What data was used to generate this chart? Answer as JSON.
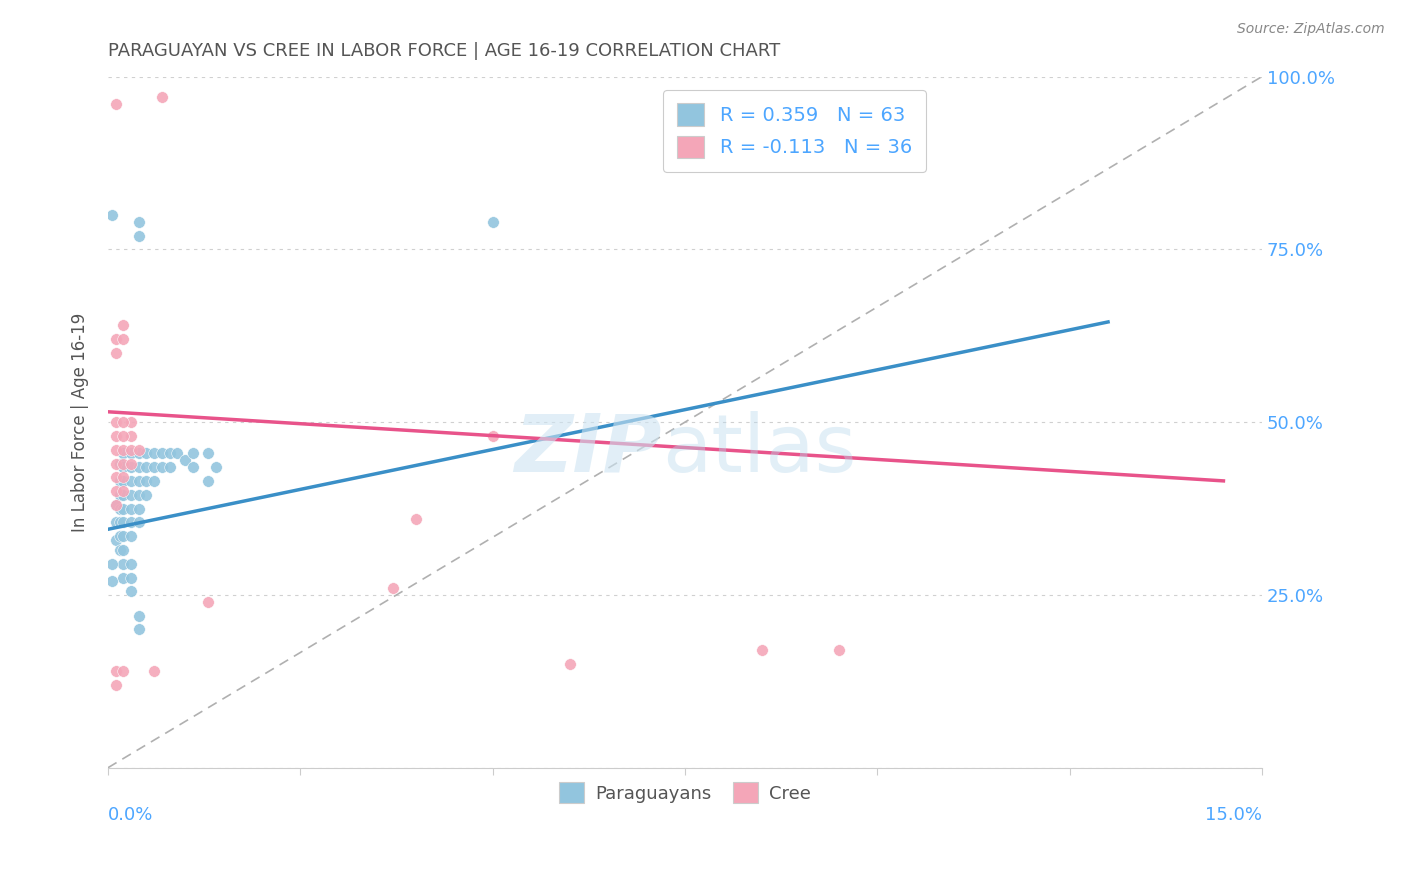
{
  "title": "PARAGUAYAN VS CREE IN LABOR FORCE | AGE 16-19 CORRELATION CHART",
  "source": "Source: ZipAtlas.com",
  "ylabel": "In Labor Force | Age 16-19",
  "xmin": 0.0,
  "xmax": 0.15,
  "ymin": 0.0,
  "ymax": 1.0,
  "yticks": [
    0.0,
    0.25,
    0.5,
    0.75,
    1.0
  ],
  "ytick_labels": [
    "",
    "25.0%",
    "50.0%",
    "75.0%",
    "100.0%"
  ],
  "blue_color": "#92c5de",
  "pink_color": "#f4a6b8",
  "line_blue": "#3a8fc7",
  "line_pink": "#e8538a",
  "axis_color": "#4da6ff",
  "title_color": "#555555",
  "blue_scatter": [
    [
      0.001,
      0.38
    ],
    [
      0.001,
      0.355
    ],
    [
      0.001,
      0.33
    ],
    [
      0.0015,
      0.44
    ],
    [
      0.0015,
      0.415
    ],
    [
      0.0015,
      0.395
    ],
    [
      0.0015,
      0.375
    ],
    [
      0.0015,
      0.355
    ],
    [
      0.0015,
      0.335
    ],
    [
      0.0015,
      0.315
    ],
    [
      0.002,
      0.455
    ],
    [
      0.002,
      0.435
    ],
    [
      0.002,
      0.415
    ],
    [
      0.002,
      0.395
    ],
    [
      0.002,
      0.375
    ],
    [
      0.002,
      0.355
    ],
    [
      0.002,
      0.335
    ],
    [
      0.002,
      0.315
    ],
    [
      0.002,
      0.295
    ],
    [
      0.002,
      0.275
    ],
    [
      0.003,
      0.455
    ],
    [
      0.003,
      0.435
    ],
    [
      0.003,
      0.415
    ],
    [
      0.003,
      0.395
    ],
    [
      0.003,
      0.375
    ],
    [
      0.003,
      0.355
    ],
    [
      0.003,
      0.335
    ],
    [
      0.004,
      0.455
    ],
    [
      0.004,
      0.435
    ],
    [
      0.004,
      0.415
    ],
    [
      0.004,
      0.395
    ],
    [
      0.004,
      0.375
    ],
    [
      0.004,
      0.355
    ],
    [
      0.005,
      0.455
    ],
    [
      0.005,
      0.435
    ],
    [
      0.005,
      0.415
    ],
    [
      0.005,
      0.395
    ],
    [
      0.006,
      0.455
    ],
    [
      0.006,
      0.435
    ],
    [
      0.006,
      0.415
    ],
    [
      0.007,
      0.455
    ],
    [
      0.007,
      0.435
    ],
    [
      0.008,
      0.455
    ],
    [
      0.008,
      0.435
    ],
    [
      0.009,
      0.455
    ],
    [
      0.01,
      0.445
    ],
    [
      0.011,
      0.455
    ],
    [
      0.011,
      0.435
    ],
    [
      0.013,
      0.455
    ],
    [
      0.013,
      0.415
    ],
    [
      0.014,
      0.435
    ],
    [
      0.0005,
      0.8
    ],
    [
      0.004,
      0.79
    ],
    [
      0.004,
      0.77
    ],
    [
      0.05,
      0.79
    ],
    [
      0.0005,
      0.295
    ],
    [
      0.0005,
      0.27
    ],
    [
      0.003,
      0.295
    ],
    [
      0.003,
      0.275
    ],
    [
      0.003,
      0.255
    ],
    [
      0.004,
      0.22
    ],
    [
      0.004,
      0.2
    ]
  ],
  "pink_scatter": [
    [
      0.001,
      0.96
    ],
    [
      0.007,
      0.97
    ],
    [
      0.001,
      0.62
    ],
    [
      0.001,
      0.6
    ],
    [
      0.002,
      0.64
    ],
    [
      0.002,
      0.62
    ],
    [
      0.003,
      0.5
    ],
    [
      0.003,
      0.48
    ],
    [
      0.001,
      0.5
    ],
    [
      0.001,
      0.48
    ],
    [
      0.001,
      0.46
    ],
    [
      0.001,
      0.44
    ],
    [
      0.001,
      0.42
    ],
    [
      0.001,
      0.4
    ],
    [
      0.001,
      0.38
    ],
    [
      0.002,
      0.5
    ],
    [
      0.002,
      0.48
    ],
    [
      0.002,
      0.46
    ],
    [
      0.002,
      0.44
    ],
    [
      0.002,
      0.42
    ],
    [
      0.002,
      0.4
    ],
    [
      0.003,
      0.46
    ],
    [
      0.003,
      0.44
    ],
    [
      0.004,
      0.46
    ],
    [
      0.001,
      0.14
    ],
    [
      0.001,
      0.12
    ],
    [
      0.002,
      0.14
    ],
    [
      0.037,
      0.26
    ],
    [
      0.04,
      0.36
    ],
    [
      0.05,
      0.48
    ],
    [
      0.06,
      0.15
    ],
    [
      0.085,
      0.17
    ],
    [
      0.095,
      0.17
    ],
    [
      0.006,
      0.14
    ],
    [
      0.013,
      0.24
    ]
  ],
  "blue_line_x": [
    0.0,
    0.13
  ],
  "blue_line_y": [
    0.345,
    0.645
  ],
  "pink_line_x": [
    0.0,
    0.145
  ],
  "pink_line_y": [
    0.515,
    0.415
  ],
  "dashed_line_x": [
    0.0,
    0.15
  ],
  "dashed_line_y": [
    0.0,
    1.0
  ],
  "legend_r1": "R = 0.359",
  "legend_n1": "N = 63",
  "legend_r2": "R = -0.113",
  "legend_n2": "N = 36"
}
